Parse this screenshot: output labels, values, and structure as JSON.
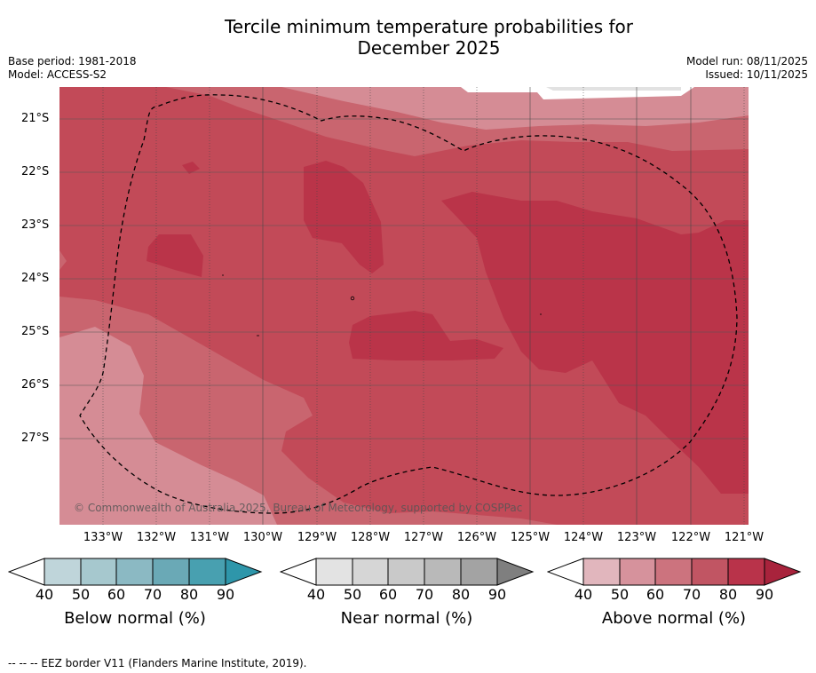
{
  "title_line1": "Tercile minimum temperature probabilities for",
  "title_line2": "December 2025",
  "base_period": "Base period: 1981-2018",
  "model": "Model: ACCESS-S2",
  "model_run": "Model run: 08/11/2025",
  "issued": "Issued: 10/11/2025",
  "copyright": "© Commonwealth of Australia 2025, Bureau of Meteorology, supported by COSPPac",
  "lat_labels": [
    "21°S",
    "22°S",
    "23°S",
    "24°S",
    "25°S",
    "26°S",
    "27°S"
  ],
  "lon_labels": [
    "133°W",
    "132°W",
    "131°W",
    "130°W",
    "129°W",
    "128°W",
    "127°W",
    "126°W",
    "125°W",
    "124°W",
    "123°W",
    "122°W",
    "121°W"
  ],
  "legends": {
    "below": {
      "title": "Below normal (%)",
      "ticks": [
        "40",
        "50",
        "60",
        "70",
        "80",
        "90"
      ],
      "colors": [
        "#bfd5da",
        "#a6c8ce",
        "#8bb9c3",
        "#6aa9b6",
        "#48a0b0"
      ],
      "extend_color": "#2e96aa"
    },
    "near": {
      "title": "Near normal (%)",
      "ticks": [
        "40",
        "50",
        "60",
        "70",
        "80",
        "90"
      ],
      "colors": [
        "#e3e3e3",
        "#d6d6d6",
        "#c9c9c9",
        "#b9b9b9",
        "#a3a3a3"
      ],
      "extend_color": "#7f7f7f"
    },
    "above": {
      "title": "Above normal (%)",
      "ticks": [
        "40",
        "50",
        "60",
        "70",
        "80",
        "90"
      ],
      "colors": [
        "#e1b6bd",
        "#d6929c",
        "#cc737e",
        "#c15563",
        "#b9334a"
      ],
      "extend_color": "#a8233c"
    }
  },
  "footnote": "--  --  -- EEZ border V11 (Flanders Marine Institute, 2019)."
}
